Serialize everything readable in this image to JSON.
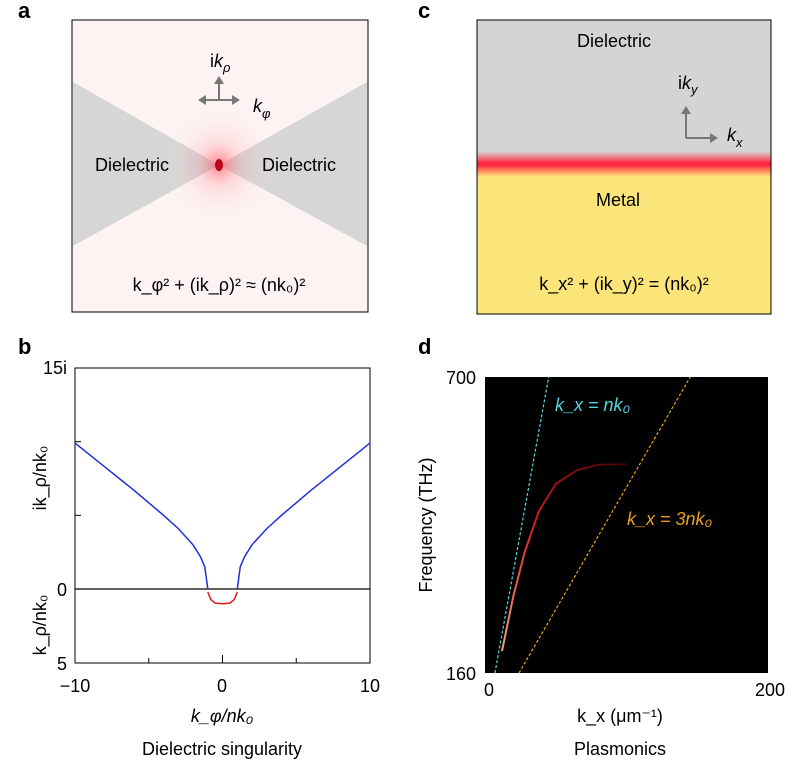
{
  "panels": {
    "a": {
      "letter": "a",
      "left_label": "Dielectric",
      "right_label": "Dielectric",
      "axis_up_prefix": "i",
      "axis_up_var": "k",
      "axis_up_sub": "ρ",
      "axis_right_var": "k",
      "axis_right_sub": "φ",
      "equation": "k_φ² + (ik_ρ)² ≈ (nk₀)²"
    },
    "b": {
      "letter": "b",
      "y_top_label": "15i",
      "y_zero_label": "0",
      "y_bottom_label": "5",
      "x_tick_labels": [
        "−10",
        "0",
        "10"
      ],
      "ylabel_upper": "ik_ρ/nk₀",
      "ylabel_lower": "k_ρ/nk₀",
      "xlabel": "k_φ/nk₀",
      "caption": "Dielectric singularity"
    },
    "c": {
      "letter": "c",
      "top_label": "Dielectric",
      "bottom_label": "Metal",
      "axis_up_prefix": "i",
      "axis_up_var": "k",
      "axis_up_sub": "y",
      "axis_right_var": "k",
      "axis_right_sub": "x",
      "equation": "k_x² + (ik_y)² = (nk₀)²"
    },
    "d": {
      "letter": "d",
      "y_top_label": "700",
      "y_bottom_label": "160",
      "x_left_label": "0",
      "x_right_label": "200",
      "ylabel": "Frequency (THz)",
      "xlabel": "k_x (μm⁻¹)",
      "line1_label": "k_x = nk₀",
      "line2_label": "k_x = 3nk₀",
      "caption": "Plasmonics"
    }
  },
  "chart_data": [
    {
      "type": "line",
      "panel": "b",
      "xlim": [
        -10,
        10
      ],
      "x_ticks": [
        -10,
        0,
        10
      ],
      "upper_ylim": [
        0,
        15
      ],
      "lower_ylim": [
        0,
        5
      ],
      "series": [
        {
          "part": "imaginary (upper half)",
          "color": "#1f2fd6",
          "x": [
            -10,
            -8,
            -6,
            -4,
            -3,
            -2,
            -1.5,
            -1.2,
            -1.0,
            1.0,
            1.2,
            1.5,
            2,
            3,
            4,
            6,
            8,
            10
          ],
          "y": [
            9.9,
            8.3,
            6.7,
            5.0,
            4.1,
            3.0,
            2.2,
            1.5,
            0.0,
            0.0,
            1.5,
            2.2,
            3.0,
            4.1,
            5.0,
            6.7,
            8.3,
            9.9
          ]
        },
        {
          "part": "real (lower half)",
          "color": "#e0191f",
          "x": [
            -1.0,
            -0.8,
            -0.5,
            0,
            0.5,
            0.8,
            1.0
          ],
          "y": [
            0.2,
            0.7,
            0.95,
            1.0,
            0.95,
            0.7,
            0.2
          ]
        }
      ]
    },
    {
      "type": "line",
      "panel": "d",
      "xlim": [
        0,
        200
      ],
      "ylim": [
        160,
        700
      ],
      "series": [
        {
          "name": "k_x = nk₀",
          "color": "#4fd6e0",
          "style": "dashed",
          "x": [
            7,
            45
          ],
          "y": [
            160,
            700
          ]
        },
        {
          "name": "k_x = 3nk₀",
          "color": "#e8a21a",
          "style": "dashed",
          "x": [
            24,
            145
          ],
          "y": [
            160,
            700
          ]
        },
        {
          "part": "plasmon dispersion",
          "color": "#d01818",
          "x": [
            12,
            20,
            28,
            38,
            50,
            65,
            80,
            100
          ],
          "y": [
            200,
            300,
            380,
            455,
            505,
            530,
            540,
            541
          ]
        }
      ]
    }
  ]
}
